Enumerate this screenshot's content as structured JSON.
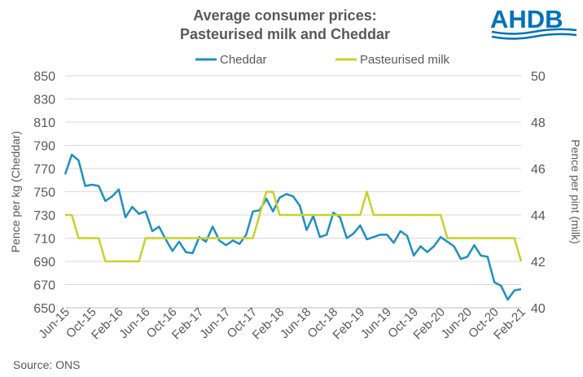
{
  "header": {
    "title_line1": "Average consumer prices:",
    "title_line2": "Pasteurised milk and Cheddar",
    "logo_text": "AHDB"
  },
  "footer": {
    "source": "Source:  ONS"
  },
  "colors": {
    "cheddar": "#1f8fc4",
    "milk": "#c7d22d",
    "grid": "#d9d9d9",
    "text": "#595959",
    "logo": "#0071bc"
  },
  "chart_data": {
    "type": "line",
    "legend_position": "top",
    "grid": true,
    "x": [
      "Jun-15",
      "Jul-15",
      "Aug-15",
      "Sep-15",
      "Oct-15",
      "Nov-15",
      "Dec-15",
      "Jan-16",
      "Feb-16",
      "Mar-16",
      "Apr-16",
      "May-16",
      "Jun-16",
      "Jul-16",
      "Aug-16",
      "Sep-16",
      "Oct-16",
      "Nov-16",
      "Dec-16",
      "Jan-17",
      "Feb-17",
      "Mar-17",
      "Apr-17",
      "May-17",
      "Jun-17",
      "Jul-17",
      "Aug-17",
      "Sep-17",
      "Oct-17",
      "Nov-17",
      "Dec-17",
      "Jan-18",
      "Feb-18",
      "Mar-18",
      "Apr-18",
      "May-18",
      "Jun-18",
      "Jul-18",
      "Aug-18",
      "Sep-18",
      "Oct-18",
      "Nov-18",
      "Dec-18",
      "Jan-19",
      "Feb-19",
      "Mar-19",
      "Apr-19",
      "May-19",
      "Jun-19",
      "Jul-19",
      "Aug-19",
      "Sep-19",
      "Oct-19",
      "Nov-19",
      "Dec-19",
      "Jan-20",
      "Feb-20",
      "Mar-20",
      "Apr-20",
      "May-20",
      "Jun-20",
      "Jul-20",
      "Aug-20",
      "Sep-20",
      "Oct-20",
      "Nov-20",
      "Dec-20",
      "Jan-21",
      "Feb-21"
    ],
    "x_tick_labels": [
      "Jun-15",
      "Oct-15",
      "Feb-16",
      "Jun-16",
      "Oct-16",
      "Feb-17",
      "Jun-17",
      "Oct-17",
      "Feb-18",
      "Jun-18",
      "Oct-18",
      "Feb-19",
      "Jun-19",
      "Oct-19",
      "Feb-20",
      "Jun-20",
      "Oct-20",
      "Feb-21"
    ],
    "y_left": {
      "label": "Pence per kg (Cheddar)",
      "lim": [
        650,
        850
      ],
      "ticks": [
        650,
        670,
        690,
        710,
        730,
        750,
        770,
        790,
        810,
        830,
        850
      ]
    },
    "y_right": {
      "label": "Pence per pint (milk)",
      "lim": [
        40,
        50
      ],
      "ticks": [
        40,
        42,
        44,
        46,
        48,
        50
      ]
    },
    "series": [
      {
        "name": "Cheddar",
        "axis": "left",
        "values": [
          765,
          782,
          777,
          755,
          756,
          755,
          742,
          746,
          752,
          728,
          737,
          731,
          733,
          716,
          720,
          709,
          699,
          707,
          698,
          697,
          711,
          707,
          720,
          708,
          704,
          708,
          705,
          713,
          733,
          734,
          744,
          733,
          745,
          748,
          746,
          738,
          717,
          729,
          711,
          713,
          732,
          728,
          710,
          714,
          721,
          709,
          711,
          713,
          713,
          706,
          716,
          712,
          695,
          703,
          698,
          703,
          711,
          707,
          703,
          692,
          694,
          704,
          695,
          694,
          672,
          669,
          657,
          665,
          666
        ]
      },
      {
        "name": "Pasteurised milk",
        "axis": "right",
        "values": [
          44,
          44,
          43,
          43,
          43,
          43,
          42,
          42,
          42,
          42,
          42,
          42,
          43,
          43,
          43,
          43,
          43,
          43,
          43,
          43,
          43,
          43,
          43,
          43,
          43,
          43,
          43,
          43,
          43,
          44,
          45,
          45,
          44,
          44,
          44,
          44,
          44,
          44,
          44,
          44,
          44,
          44,
          44,
          44,
          44,
          45,
          44,
          44,
          44,
          44,
          44,
          44,
          44,
          44,
          44,
          44,
          44,
          43,
          43,
          43,
          43,
          43,
          43,
          43,
          43,
          43,
          43,
          43,
          42
        ]
      }
    ]
  }
}
